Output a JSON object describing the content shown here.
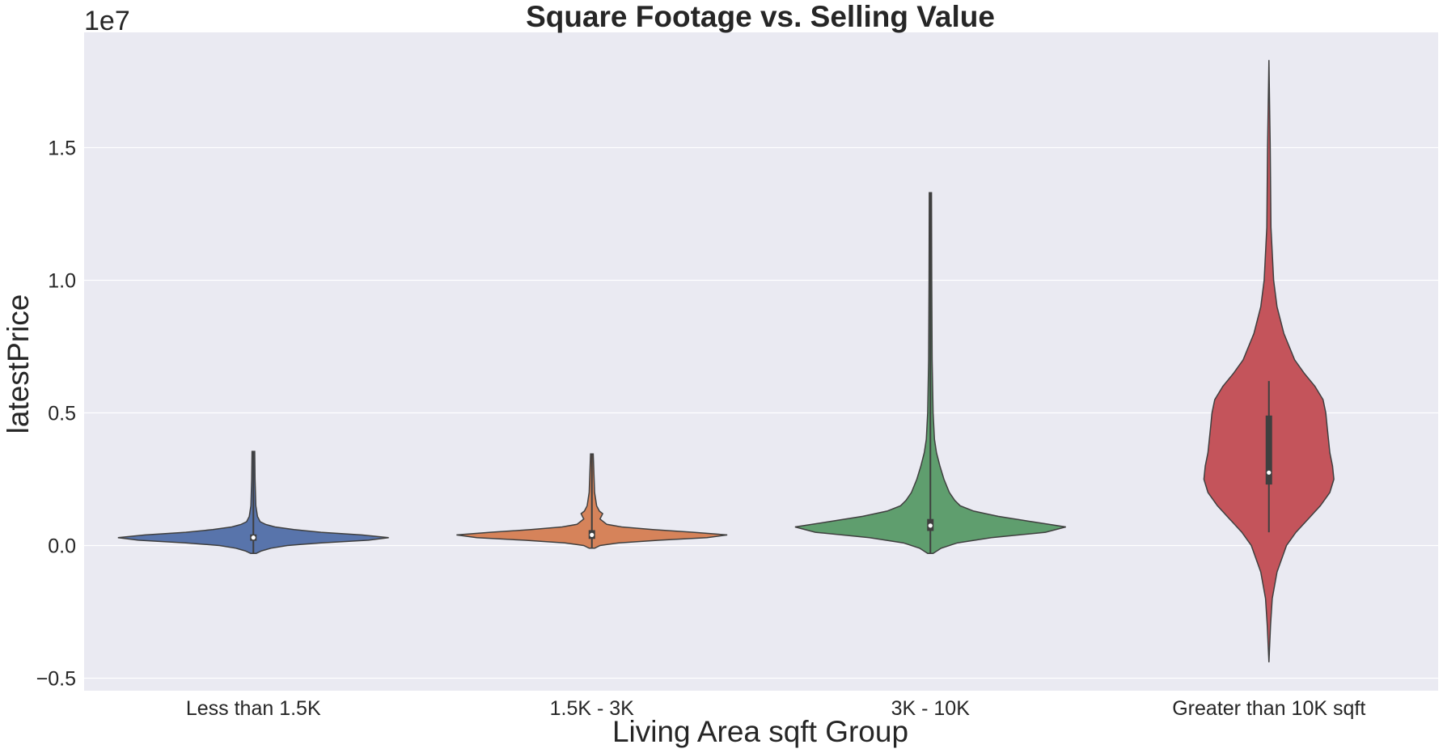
{
  "chart_data": {
    "type": "violin",
    "title": "Square Footage vs. Selling Value",
    "xlabel": "Living Area sqft Group",
    "ylabel": "latestPrice",
    "y_offset_label": "1e7",
    "ylim": [
      -0.55,
      1.95
    ],
    "yticks": [
      -0.5,
      0.0,
      0.5,
      1.0,
      1.5
    ],
    "ytick_labels": [
      "−0.5",
      "0.0",
      "0.5",
      "1.0",
      "1.5"
    ],
    "grid": true,
    "categories": [
      "Less than 1.5K",
      "1.5K - 3K",
      "3K - 10K",
      "Greater than 10K sqft"
    ],
    "colors": [
      "#5874AB",
      "#D6835A",
      "#5F9E6E",
      "#C4545B"
    ],
    "groups": [
      {
        "category": "Less than 1.5K",
        "min": -0.03,
        "max": 0.355,
        "q1": 0.018,
        "median": 0.03,
        "q3": 0.042,
        "whisker_low": -0.03,
        "whisker_high": 0.355,
        "density": [
          [
            -0.03,
            0.02
          ],
          [
            -0.02,
            0.06
          ],
          [
            -0.01,
            0.13
          ],
          [
            0.0,
            0.25
          ],
          [
            0.01,
            0.5
          ],
          [
            0.02,
            0.85
          ],
          [
            0.03,
            1.0
          ],
          [
            0.04,
            0.8
          ],
          [
            0.05,
            0.5
          ],
          [
            0.06,
            0.3
          ],
          [
            0.07,
            0.16
          ],
          [
            0.08,
            0.09
          ],
          [
            0.09,
            0.05
          ],
          [
            0.11,
            0.03
          ],
          [
            0.15,
            0.018
          ],
          [
            0.25,
            0.012
          ],
          [
            0.355,
            0.01
          ]
        ]
      },
      {
        "category": "1.5K - 3K",
        "min": -0.01,
        "max": 0.345,
        "q1": 0.025,
        "median": 0.04,
        "q3": 0.058,
        "whisker_low": -0.01,
        "whisker_high": 0.345,
        "density": [
          [
            -0.01,
            0.02
          ],
          [
            0.0,
            0.06
          ],
          [
            0.01,
            0.2
          ],
          [
            0.02,
            0.5
          ],
          [
            0.03,
            0.85
          ],
          [
            0.04,
            1.0
          ],
          [
            0.05,
            0.75
          ],
          [
            0.06,
            0.45
          ],
          [
            0.07,
            0.22
          ],
          [
            0.08,
            0.11
          ],
          [
            0.1,
            0.06
          ],
          [
            0.12,
            0.08
          ],
          [
            0.13,
            0.055
          ],
          [
            0.15,
            0.035
          ],
          [
            0.2,
            0.02
          ],
          [
            0.345,
            0.01
          ]
        ]
      },
      {
        "category": "3K - 10K",
        "min": -0.03,
        "max": 1.33,
        "q1": 0.055,
        "median": 0.075,
        "q3": 0.1,
        "whisker_low": -0.03,
        "whisker_high": 1.33,
        "density": [
          [
            -0.03,
            0.02
          ],
          [
            -0.01,
            0.08
          ],
          [
            0.01,
            0.2
          ],
          [
            0.03,
            0.45
          ],
          [
            0.05,
            0.85
          ],
          [
            0.07,
            1.0
          ],
          [
            0.09,
            0.75
          ],
          [
            0.11,
            0.5
          ],
          [
            0.13,
            0.32
          ],
          [
            0.15,
            0.22
          ],
          [
            0.17,
            0.18
          ],
          [
            0.2,
            0.14
          ],
          [
            0.25,
            0.1
          ],
          [
            0.3,
            0.07
          ],
          [
            0.35,
            0.045
          ],
          [
            0.4,
            0.03
          ],
          [
            0.5,
            0.02
          ],
          [
            0.7,
            0.013
          ],
          [
            1.0,
            0.01
          ],
          [
            1.33,
            0.008
          ]
        ]
      },
      {
        "category": "Greater than 10K sqft",
        "min": -0.44,
        "max": 1.83,
        "q1": 0.23,
        "median": 0.275,
        "q3": 0.49,
        "whisker_low": 0.05,
        "whisker_high": 0.62,
        "density": [
          [
            -0.44,
            0.0
          ],
          [
            -0.3,
            0.012
          ],
          [
            -0.2,
            0.025
          ],
          [
            -0.1,
            0.06
          ],
          [
            0.0,
            0.13
          ],
          [
            0.05,
            0.2
          ],
          [
            0.1,
            0.29
          ],
          [
            0.15,
            0.38
          ],
          [
            0.2,
            0.45
          ],
          [
            0.25,
            0.48
          ],
          [
            0.3,
            0.47
          ],
          [
            0.35,
            0.45
          ],
          [
            0.4,
            0.44
          ],
          [
            0.45,
            0.43
          ],
          [
            0.5,
            0.42
          ],
          [
            0.55,
            0.4
          ],
          [
            0.6,
            0.34
          ],
          [
            0.65,
            0.26
          ],
          [
            0.7,
            0.19
          ],
          [
            0.8,
            0.11
          ],
          [
            0.9,
            0.06
          ],
          [
            1.0,
            0.035
          ],
          [
            1.2,
            0.015
          ],
          [
            1.5,
            0.01
          ],
          [
            1.83,
            0.0
          ]
        ]
      }
    ]
  }
}
